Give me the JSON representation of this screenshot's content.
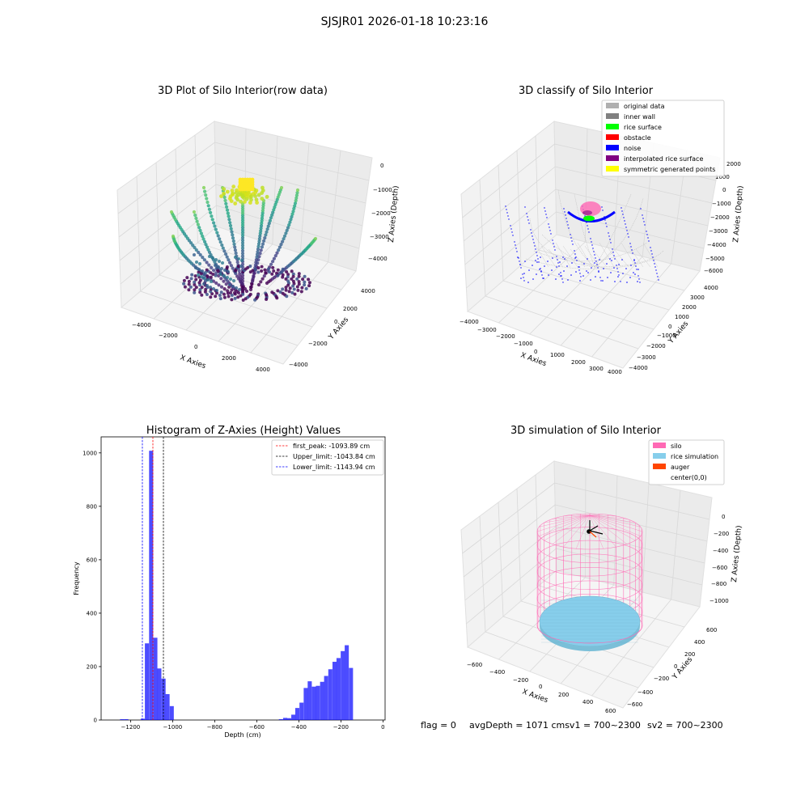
{
  "suptitle": "SJSJR01 2026-01-18 10:23:16",
  "footer": {
    "flag": "flag = 0",
    "avg_depth": "avgDepth = 1071 cmsv1 = 700~2300",
    "sv2": "sv2 = 700~2300"
  },
  "colors": {
    "silo": "#ff69b4",
    "rice_simulation": "#87ceeb",
    "auger": "#ff4500",
    "hist_bar": "#0000ff",
    "first_peak": "#ff0000",
    "upper_limit": "#000000",
    "lower_limit": "#0000ff"
  },
  "chart_data": [
    {
      "type": "scatter",
      "title": "3D Plot of Silo Interior(row data)",
      "xlabel": "X Axies",
      "ylabel": "Y Axies",
      "zlabel": "Z Axies (Depth)",
      "x_ticks": [
        "−4000",
        "−2000",
        "0",
        "2000",
        "4000"
      ],
      "y_ticks": [
        "−4000",
        "−2000",
        "0",
        "2000",
        "4000"
      ],
      "z_ticks": [
        "0",
        "−1000",
        "−2000",
        "−3000",
        "−4000"
      ]
    },
    {
      "type": "scatter",
      "title": "3D classify of Silo Interior",
      "xlabel": "X Axies",
      "ylabel": "Y Axies",
      "zlabel": "Z Axies (Depth)",
      "x_ticks": [
        "−4000",
        "−3000",
        "−2000",
        "−1000",
        "0",
        "1000",
        "2000",
        "3000",
        "4000"
      ],
      "y_ticks": [
        "−4000",
        "−3000",
        "−2000",
        "−1000",
        "0",
        "1000",
        "2000",
        "3000",
        "4000"
      ],
      "z_ticks": [
        "1000",
        "0",
        "−1000",
        "−2000",
        "−3000",
        "−4000",
        "−5000",
        "−6000"
      ],
      "z_ticks_hidden": [
        "2000"
      ],
      "legend": [
        {
          "name": "original data",
          "color": "#b0b0b0"
        },
        {
          "name": "inner wall",
          "color": "#808080"
        },
        {
          "name": "rice surface",
          "color": "#00ff00"
        },
        {
          "name": "obstacle",
          "color": "#ff0000"
        },
        {
          "name": "noise",
          "color": "#0000ff"
        },
        {
          "name": "interpolated rice surface",
          "color": "#800080"
        },
        {
          "name": "symmetric generated points",
          "color": "#ffff00"
        }
      ],
      "legend_placement": "top-right"
    },
    {
      "type": "bar",
      "title": "Histogram of Z-Axies (Height) Values",
      "xlabel": "Depth (cm)",
      "ylabel": "Frequency",
      "xlim": [
        -1340,
        10
      ],
      "ylim": [
        0,
        1060
      ],
      "x_ticks": [
        -1200,
        -1000,
        -800,
        -600,
        -400,
        -200,
        0
      ],
      "y_ticks": [
        0,
        200,
        400,
        600,
        800,
        1000
      ],
      "tick_labels_x": [
        "−1200",
        "−1000",
        "−800",
        "−600",
        "−400",
        "−200",
        "0"
      ],
      "tick_labels_y": [
        "0",
        "200",
        "400",
        "600",
        "800",
        "1000"
      ],
      "bin_width": 19.55,
      "bins": [
        {
          "x": -1250,
          "y": 3
        },
        {
          "x": -1230,
          "y": 3
        },
        {
          "x": -1152,
          "y": 5
        },
        {
          "x": -1132,
          "y": 287
        },
        {
          "x": -1112,
          "y": 1008
        },
        {
          "x": -1092,
          "y": 308
        },
        {
          "x": -1073,
          "y": 193
        },
        {
          "x": -1053,
          "y": 155
        },
        {
          "x": -1034,
          "y": 97
        },
        {
          "x": -1014,
          "y": 52
        },
        {
          "x": -495,
          "y": 3
        },
        {
          "x": -475,
          "y": 8
        },
        {
          "x": -456,
          "y": 7
        },
        {
          "x": -436,
          "y": 20
        },
        {
          "x": -417,
          "y": 45
        },
        {
          "x": -397,
          "y": 65
        },
        {
          "x": -377,
          "y": 120
        },
        {
          "x": -358,
          "y": 145
        },
        {
          "x": -338,
          "y": 125
        },
        {
          "x": -319,
          "y": 128
        },
        {
          "x": -299,
          "y": 143
        },
        {
          "x": -280,
          "y": 165
        },
        {
          "x": -260,
          "y": 190
        },
        {
          "x": -240,
          "y": 218
        },
        {
          "x": -221,
          "y": 232
        },
        {
          "x": -201,
          "y": 258
        },
        {
          "x": -182,
          "y": 280
        },
        {
          "x": -162,
          "y": 195
        }
      ],
      "vlines": [
        {
          "x": -1093.89,
          "label": "first_peak: -1093.89 cm",
          "color": "#ff0000"
        },
        {
          "x": -1043.84,
          "label": "Upper_limit: -1043.84 cm",
          "color": "#000000"
        },
        {
          "x": -1143.94,
          "label": "Lower_limit: -1143.94 cm",
          "color": "#0000ff"
        }
      ],
      "legend_placement": "top-right"
    },
    {
      "type": "scatter",
      "title": "3D simulation of Silo Interior",
      "xlabel": "X Axies",
      "ylabel": "Y Axies",
      "zlabel": "Z Axies (Depth)",
      "x_ticks": [
        "−600",
        "−400",
        "−200",
        "0",
        "200",
        "400",
        "600"
      ],
      "y_ticks": [
        "−600",
        "−400",
        "−200",
        "0",
        "200",
        "400",
        "600"
      ],
      "z_ticks": [
        "0",
        "−200",
        "−400",
        "−600",
        "−800",
        "−1000"
      ],
      "legend": [
        {
          "name": "silo",
          "color": "#ff69b4"
        },
        {
          "name": "rice simulation",
          "color": "#87ceeb"
        },
        {
          "name": "auger",
          "color": "#ff4500"
        },
        {
          "name": "center(0,0)",
          "color": "#ffffff"
        }
      ],
      "legend_placement": "top-right"
    }
  ]
}
